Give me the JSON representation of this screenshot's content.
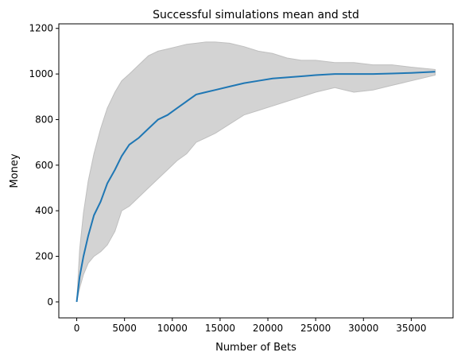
{
  "chart_data": {
    "type": "area",
    "title": "Successful simulations mean and std",
    "xlabel": "Number of Bets",
    "ylabel": "Money",
    "xlim": [
      -1875,
      39375
    ],
    "ylim": [
      -70,
      1220
    ],
    "xticks": [
      0,
      5000,
      10000,
      15000,
      20000,
      25000,
      30000,
      35000
    ],
    "yticks": [
      0,
      200,
      400,
      600,
      800,
      1000,
      1200
    ],
    "grid": false,
    "colors": {
      "mean": "#1f77b4",
      "band_fill": "#d3d3d3",
      "band_edge": "#bfbfbf"
    },
    "series": [
      {
        "role": "mean",
        "x": [
          0,
          300,
          700,
          1200,
          1800,
          2500,
          3200,
          4000,
          4700,
          5500,
          6500,
          7500,
          8500,
          9500,
          10500,
          11500,
          12500,
          13500,
          14500,
          16000,
          17500,
          19000,
          20500,
          22000,
          23500,
          25000,
          27000,
          29000,
          31000,
          33000,
          35000,
          37500
        ],
        "values": [
          0,
          110,
          200,
          290,
          380,
          440,
          520,
          580,
          640,
          690,
          720,
          760,
          800,
          820,
          850,
          880,
          910,
          920,
          930,
          945,
          960,
          970,
          980,
          985,
          990,
          995,
          1000,
          1000,
          1000,
          1002,
          1005,
          1010
        ]
      },
      {
        "role": "mean + std",
        "x": [
          0,
          300,
          700,
          1200,
          1800,
          2500,
          3200,
          4000,
          4700,
          5500,
          6500,
          7500,
          8500,
          9500,
          10500,
          11500,
          12500,
          13500,
          14500,
          16000,
          17500,
          19000,
          20500,
          22000,
          23500,
          25000,
          27000,
          29000,
          31000,
          33000,
          35000,
          37500
        ],
        "values": [
          0,
          230,
          390,
          530,
          650,
          760,
          850,
          920,
          970,
          1000,
          1040,
          1080,
          1100,
          1110,
          1120,
          1130,
          1135,
          1140,
          1140,
          1135,
          1120,
          1100,
          1090,
          1070,
          1060,
          1060,
          1050,
          1050,
          1040,
          1040,
          1030,
          1020
        ]
      },
      {
        "role": "mean - std",
        "x": [
          0,
          300,
          700,
          1200,
          1800,
          2500,
          3200,
          4000,
          4700,
          5500,
          6500,
          7500,
          8500,
          9500,
          10500,
          11500,
          12500,
          13500,
          14500,
          16000,
          17500,
          19000,
          20500,
          22000,
          23500,
          25000,
          27000,
          29000,
          31000,
          33000,
          35000,
          37500
        ],
        "values": [
          0,
          60,
          120,
          170,
          200,
          220,
          250,
          310,
          400,
          420,
          460,
          500,
          540,
          580,
          620,
          650,
          700,
          720,
          740,
          780,
          820,
          840,
          860,
          880,
          900,
          920,
          940,
          920,
          930,
          950,
          970,
          995
        ]
      }
    ]
  }
}
